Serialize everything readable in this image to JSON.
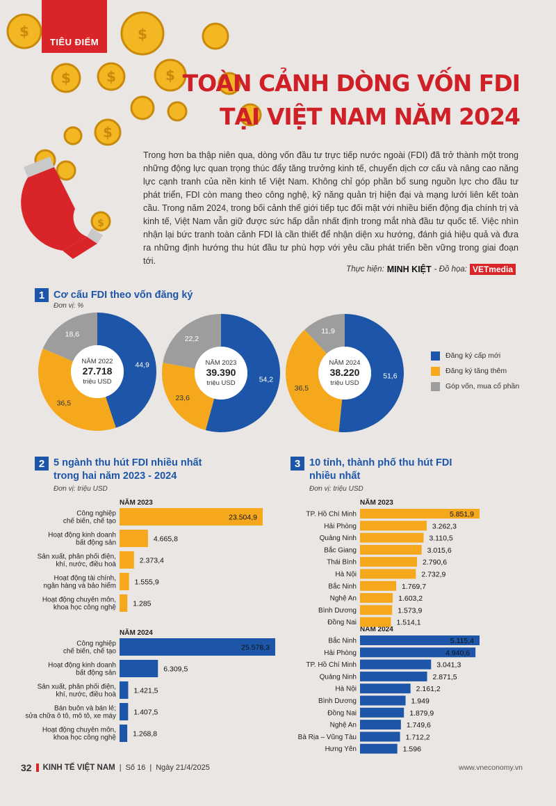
{
  "header": {
    "tag": "TIÊU ĐIỂM",
    "title_line1": "TOÀN CẢNH DÒNG VỐN FDI",
    "title_line2": "TẠI VIỆT NAM NĂM 2024",
    "intro": "Trong hơn ba thập niên qua, dòng vốn đầu tư trực tiếp nước ngoài (FDI) đã trở thành một trong những động lực quan trọng thúc đẩy tăng trưởng kinh tế, chuyển dịch cơ cấu và nâng cao năng lực cạnh tranh của nền kinh tế Việt Nam. Không chỉ góp phần bổ sung nguồn lực cho đầu tư phát triển, FDI còn mang theo công nghệ, kỹ năng quản trị hiện đại và mạng lưới liên kết toàn cầu. Trong năm 2024, trong bối cảnh thế giới tiếp tục đối mặt với nhiều biến động địa chính trị và kinh tế, Việt Nam vẫn giữ được sức hấp dẫn nhất định trong mắt nhà đầu tư quốc tế. Việc nhìn nhận lại bức tranh toàn cảnh FDI là cần thiết để nhận diện xu hướng, đánh giá hiệu quả và đưa ra những định hướng thu hút đầu tư phù hợp với yêu cầu phát triển bền vững trong giai đoạn tới.",
    "credit_prefix": "Thực hiện:",
    "credit_name": "MINH KIỆT",
    "credit_mid": "- Đồ họa:",
    "credit_logo": "VETmedia"
  },
  "colors": {
    "blue": "#1d56a8",
    "orange": "#f6a81d",
    "gray": "#9d9d9d",
    "red": "#d9252a"
  },
  "section1": {
    "num": "1",
    "title": "Cơ cấu FDI theo vốn đăng ký",
    "unit": "Đơn vị: %"
  },
  "section2": {
    "num": "2",
    "title_line1": "5 ngành thu hút FDI nhiều nhất",
    "title_line2": "trong hai năm 2023 - 2024",
    "unit": "Đơn vị: triệu USD"
  },
  "section3": {
    "num": "3",
    "title_line1": "10 tỉnh, thành phố thu hút FDI",
    "title_line2": "nhiều nhất",
    "unit": "Đơn vị: triệu USD"
  },
  "chart_data": [
    {
      "type": "pie",
      "title": "Cơ cấu FDI theo vốn đăng ký",
      "legend": [
        "Đăng ký cấp mới",
        "Đăng ký tăng thêm",
        "Góp vốn, mua cổ phần"
      ],
      "legend_position": "right",
      "pies": [
        {
          "year_label": "NĂM 2022",
          "total": "27.718",
          "total_unit": "triệu USD",
          "values": [
            44.9,
            36.5,
            18.6
          ],
          "labels": [
            "44,9",
            "36,5",
            "18,6"
          ]
        },
        {
          "year_label": "NĂM 2023",
          "total": "39.390",
          "total_unit": "triệu USD",
          "values": [
            54.2,
            23.6,
            22.2
          ],
          "labels": [
            "54,2",
            "23,6",
            "22,2"
          ]
        },
        {
          "year_label": "NĂM 2024",
          "total": "38.220",
          "total_unit": "triệu USD",
          "values": [
            51.6,
            36.5,
            11.9
          ],
          "labels": [
            "51,6",
            "36,5",
            "11,9"
          ]
        }
      ]
    },
    {
      "type": "bar",
      "title": "5 ngành thu hút FDI nhiều nhất trong hai năm 2023 - 2024",
      "groups": [
        {
          "year": "NĂM 2023",
          "categories": [
            "Công nghiệp\nchế biến, chế tạo",
            "Hoạt động kinh doanh\nbất động sản",
            "Sản xuất, phân phối điện,\nkhí, nước, điều hoà",
            "Hoạt động tài chính,\nngân hàng và bảo hiểm",
            "Hoạt động chuyên môn,\nkhoa học công nghệ"
          ],
          "values": [
            23504.9,
            4665.8,
            2373.4,
            1555.9,
            1285
          ],
          "labels": [
            "23.504,9",
            "4.665,8",
            "2.373,4",
            "1.555,9",
            "1.285"
          ]
        },
        {
          "year": "NĂM 2024",
          "categories": [
            "Công nghiệp\nchế biến, chế tạo",
            "Hoạt động kinh doanh\nbất động sản",
            "Sản xuất, phân phối điện,\nkhí, nước, điều hoà",
            "Bán buôn và bán lẻ;\nsửa chữa ô tô, mô tô, xe máy",
            "Hoạt động chuyên môn,\nkhoa học công nghệ"
          ],
          "values": [
            25578.3,
            6309.5,
            1421.5,
            1407.5,
            1268.8
          ],
          "labels": [
            "25.578,3",
            "6.309,5",
            "1.421,5",
            "1.407,5",
            "1.268,8"
          ]
        }
      ]
    },
    {
      "type": "bar",
      "title": "10 tỉnh, thành phố thu hút FDI nhiều nhất",
      "groups": [
        {
          "year": "NĂM 2023",
          "categories": [
            "TP. Hồ Chí Minh",
            "Hải Phòng",
            "Quảng Ninh",
            "Bắc Giang",
            "Thái Bình",
            "Hà Nội",
            "Bắc Ninh",
            "Nghệ An",
            "Bình Dương",
            "Đồng Nai"
          ],
          "values": [
            5851.9,
            3262.3,
            3110.5,
            3015.6,
            2790.6,
            2732.9,
            1769.7,
            1603.2,
            1573.9,
            1514.1
          ],
          "labels": [
            "5.851,9",
            "3.262,3",
            "3.110,5",
            "3.015,6",
            "2.790,6",
            "2.732,9",
            "1.769,7",
            "1.603,2",
            "1.573,9",
            "1.514,1"
          ]
        },
        {
          "year": "NĂM 2024",
          "categories": [
            "Bắc Ninh",
            "Hải Phòng",
            "TP. Hồ Chí Minh",
            "Quảng Ninh",
            "Hà Nội",
            "Bình Dương",
            "Đồng Nai",
            "Nghệ An",
            "Bà Rịa – Vũng Tàu",
            "Hưng Yên"
          ],
          "values": [
            5115.4,
            4940.6,
            3041.3,
            2871.5,
            2161.2,
            1949,
            1879.9,
            1749.6,
            1712.2,
            1596
          ],
          "labels": [
            "5.115,4",
            "4.940,6",
            "3.041,3",
            "2.871,5",
            "2.161,2",
            "1.949",
            "1.879,9",
            "1.749,6",
            "1.712,2",
            "1.596"
          ]
        }
      ]
    }
  ],
  "footer": {
    "page": "32",
    "magazine": "KINH TẾ VIỆT NAM",
    "issue": "Số 16",
    "date": "Ngày 21/4/2025",
    "website": "www.vneconomy.vn"
  }
}
